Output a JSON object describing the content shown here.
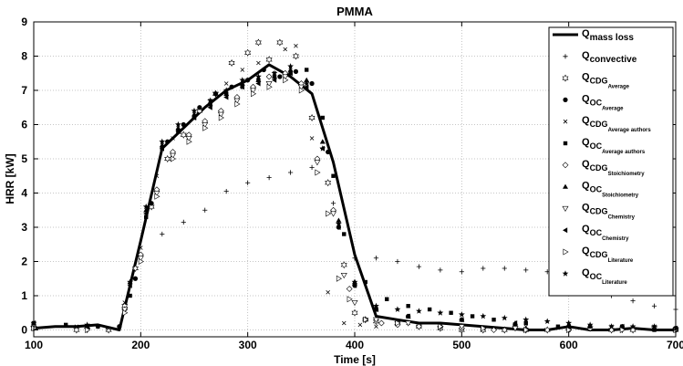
{
  "chart_data": {
    "type": "scatter",
    "title": "PMMA",
    "xlabel": "Time [s]",
    "ylabel": "HRR [kW]",
    "xlim": [
      100,
      700
    ],
    "ylim": [
      -0.2,
      9
    ],
    "xticks": [
      100,
      200,
      300,
      400,
      500,
      600,
      700
    ],
    "yticks": [
      0,
      1,
      2,
      3,
      4,
      5,
      6,
      7,
      8,
      9
    ],
    "x_tick_labels": [
      "100",
      "200",
      "300",
      "400",
      "500",
      "600",
      "700"
    ],
    "y_tick_labels": [
      "0",
      "1",
      "2",
      "3",
      "4",
      "5",
      "6",
      "7",
      "8",
      "9"
    ],
    "grid": true,
    "legend_position": "top-right",
    "series": [
      {
        "name_main": "Q",
        "name_sub": "mass loss",
        "marker": "line",
        "x": [
          100,
          120,
          140,
          160,
          180,
          200,
          220,
          240,
          260,
          280,
          300,
          320,
          340,
          360,
          380,
          400,
          420,
          440,
          460,
          480,
          500,
          520,
          540,
          560,
          580,
          600,
          620,
          640,
          660,
          680,
          700
        ],
        "y": [
          0.05,
          0.1,
          0.1,
          0.15,
          0.0,
          2.6,
          5.3,
          5.9,
          6.5,
          7.0,
          7.3,
          7.75,
          7.4,
          6.9,
          4.9,
          2.2,
          0.4,
          0.3,
          0.2,
          0.2,
          0.15,
          0.1,
          0.05,
          0.0,
          0.0,
          0.1,
          0.0,
          0.0,
          0.05,
          0.0,
          0.0
        ]
      },
      {
        "name_main": "Q",
        "name_sub": "convective",
        "marker": "plus",
        "x": [
          100,
          160,
          220,
          240,
          260,
          280,
          300,
          320,
          340,
          360,
          380,
          400,
          420,
          440,
          460,
          480,
          500,
          520,
          540,
          560,
          580,
          600,
          620,
          640,
          660,
          680,
          700
        ],
        "y": [
          0.05,
          0.1,
          2.8,
          3.15,
          3.5,
          4.05,
          4.3,
          4.45,
          4.6,
          4.75,
          3.7,
          2.1,
          2.1,
          2.0,
          1.85,
          1.75,
          1.7,
          1.8,
          1.8,
          1.75,
          1.7,
          1.5,
          1.25,
          1.0,
          0.85,
          0.7,
          0.6
        ]
      },
      {
        "name_main": "Q",
        "name_sub": "CDG_Average",
        "marker": "hexagram",
        "x": [
          100,
          140,
          170,
          185,
          195,
          210,
          225,
          240,
          255,
          270,
          285,
          300,
          310,
          320,
          330,
          345,
          360,
          375,
          390,
          400,
          410,
          420,
          440,
          460,
          480,
          500,
          520,
          540,
          560,
          580,
          600,
          620,
          640,
          660,
          680,
          700
        ],
        "y": [
          0.05,
          0.0,
          0.0,
          0.7,
          1.8,
          3.6,
          5.0,
          5.7,
          6.4,
          6.9,
          7.8,
          8.1,
          8.4,
          7.9,
          8.4,
          8.0,
          6.2,
          4.3,
          1.9,
          0.5,
          0.3,
          0.25,
          0.2,
          0.1,
          0.05,
          0.0,
          0.0,
          0.0,
          0.0,
          0.0,
          0.05,
          0.05,
          0.0,
          0.0,
          0.05,
          0.0
        ]
      },
      {
        "name_main": "Q",
        "name_sub": "OC_Average",
        "marker": "circle",
        "x": [
          100,
          150,
          180,
          195,
          210,
          225,
          240,
          255,
          270,
          285,
          300,
          315,
          330,
          345,
          360,
          375,
          385,
          400,
          420,
          450,
          500,
          550,
          600,
          650,
          700
        ],
        "y": [
          0.1,
          0.05,
          0.1,
          1.5,
          3.7,
          5.5,
          6.0,
          6.5,
          6.9,
          7.1,
          7.3,
          7.6,
          7.4,
          7.55,
          7.2,
          5.2,
          3.0,
          1.3,
          0.6,
          0.4,
          0.3,
          0.15,
          0.1,
          0.1,
          0.05
        ]
      },
      {
        "name_main": "Q",
        "name_sub": "CDG_Average authors",
        "marker": "x",
        "x": [
          100,
          140,
          170,
          185,
          200,
          215,
          230,
          250,
          265,
          280,
          295,
          310,
          325,
          335,
          345,
          360,
          375,
          390,
          405,
          420,
          450,
          480,
          520,
          560,
          600,
          640,
          680,
          700
        ],
        "y": [
          0.15,
          0.1,
          0.05,
          0.8,
          2.4,
          4.5,
          5.6,
          6.2,
          6.7,
          7.2,
          7.6,
          7.8,
          7.5,
          8.2,
          8.3,
          5.6,
          1.1,
          0.2,
          0.15,
          0.1,
          0.2,
          0.1,
          0.05,
          0.1,
          0.0,
          0.1,
          0.1,
          0.05
        ]
      },
      {
        "name_main": "Q",
        "name_sub": "OC_Average authors",
        "marker": "square",
        "x": [
          100,
          130,
          160,
          190,
          205,
          220,
          235,
          250,
          265,
          280,
          295,
          310,
          325,
          340,
          355,
          370,
          380,
          390,
          410,
          430,
          450,
          470,
          490,
          510,
          530,
          560,
          590,
          620,
          650,
          680,
          700
        ],
        "y": [
          0.2,
          0.15,
          0.1,
          1.0,
          3.3,
          5.3,
          5.8,
          6.2,
          6.6,
          6.9,
          7.1,
          7.3,
          7.4,
          7.5,
          7.6,
          6.2,
          4.5,
          2.8,
          1.4,
          0.9,
          0.7,
          0.6,
          0.5,
          0.4,
          0.3,
          0.2,
          0.1,
          0.1,
          0.1,
          0.0,
          0.0
        ]
      },
      {
        "name_main": "Q",
        "name_sub": "CDG_Stoichiometry",
        "marker": "diamond",
        "x": [
          100,
          150,
          185,
          200,
          215,
          230,
          245,
          260,
          275,
          290,
          305,
          320,
          335,
          350,
          365,
          380,
          395,
          410,
          425,
          440,
          460,
          480,
          500,
          530,
          560,
          600,
          650,
          700
        ],
        "y": [
          0.1,
          0.05,
          0.6,
          2.2,
          4.1,
          5.2,
          5.7,
          6.1,
          6.4,
          6.8,
          7.1,
          7.4,
          7.5,
          7.2,
          5.0,
          3.5,
          1.2,
          0.3,
          0.2,
          0.15,
          0.1,
          0.1,
          0.05,
          0.0,
          0.0,
          0.0,
          0.05,
          0.0
        ]
      },
      {
        "name_main": "Q",
        "name_sub": "OC_Stoichiometry",
        "marker": "triangle-up",
        "x": [
          100,
          150,
          190,
          205,
          220,
          235,
          250,
          265,
          280,
          295,
          310,
          325,
          340,
          355,
          370,
          385,
          400,
          420,
          450,
          500,
          550,
          600,
          650,
          700
        ],
        "y": [
          0.2,
          0.1,
          1.4,
          3.5,
          5.4,
          5.9,
          6.3,
          6.6,
          6.9,
          7.2,
          7.3,
          7.4,
          7.6,
          7.3,
          5.5,
          3.2,
          1.4,
          0.6,
          0.4,
          0.3,
          0.2,
          0.1,
          0.1,
          0.05
        ]
      },
      {
        "name_main": "Q",
        "name_sub": "CDG_Chemistry",
        "marker": "triangle-down",
        "x": [
          100,
          150,
          185,
          200,
          215,
          230,
          245,
          260,
          275,
          290,
          305,
          320,
          335,
          350,
          365,
          380,
          390,
          400,
          420,
          450,
          500,
          550,
          600,
          650,
          700
        ],
        "y": [
          0.05,
          0.0,
          0.6,
          2.1,
          4.0,
          5.1,
          5.6,
          6.0,
          6.3,
          6.7,
          7.0,
          7.2,
          7.4,
          7.1,
          4.9,
          3.4,
          1.6,
          0.8,
          0.3,
          0.2,
          0.1,
          0.05,
          0.0,
          0.0,
          0.0
        ]
      },
      {
        "name_main": "Q",
        "name_sub": "OC_Chemistry",
        "marker": "triangle-left",
        "x": [
          100,
          150,
          190,
          205,
          220,
          235,
          250,
          265,
          280,
          295,
          310,
          325,
          340,
          355,
          370,
          385,
          400,
          420,
          450,
          500,
          550,
          600,
          650,
          700
        ],
        "y": [
          0.2,
          0.1,
          1.3,
          3.4,
          5.3,
          5.8,
          6.2,
          6.5,
          6.8,
          7.1,
          7.2,
          7.3,
          7.5,
          7.1,
          5.3,
          3.0,
          1.3,
          0.6,
          0.4,
          0.3,
          0.2,
          0.1,
          0.1,
          0.05
        ]
      },
      {
        "name_main": "Q",
        "name_sub": "CDG_Literature",
        "marker": "triangle-right",
        "x": [
          100,
          150,
          185,
          200,
          215,
          230,
          245,
          260,
          275,
          290,
          305,
          320,
          335,
          350,
          365,
          375,
          385,
          395,
          410,
          440,
          480,
          520,
          560,
          600,
          650,
          700
        ],
        "y": [
          0.05,
          0.0,
          0.5,
          2.0,
          3.9,
          5.0,
          5.5,
          5.9,
          6.2,
          6.6,
          6.9,
          7.1,
          7.3,
          7.0,
          4.6,
          3.4,
          1.5,
          0.9,
          0.3,
          0.2,
          0.1,
          0.05,
          0.0,
          0.0,
          0.0,
          0.0
        ]
      },
      {
        "name_main": "Q",
        "name_sub": "OC_Literature",
        "marker": "pentagram",
        "x": [
          100,
          150,
          190,
          205,
          220,
          235,
          250,
          265,
          280,
          295,
          310,
          325,
          340,
          355,
          370,
          385,
          400,
          420,
          440,
          460,
          480,
          500,
          520,
          540,
          560,
          580,
          600,
          620,
          640,
          660,
          680,
          700
        ],
        "y": [
          0.2,
          0.15,
          1.4,
          3.6,
          5.5,
          6.0,
          6.4,
          6.7,
          7.0,
          7.3,
          7.4,
          7.5,
          7.7,
          7.2,
          5.3,
          3.1,
          1.4,
          0.7,
          0.6,
          0.55,
          0.5,
          0.45,
          0.4,
          0.35,
          0.3,
          0.25,
          0.2,
          0.15,
          0.1,
          0.1,
          0.1,
          0.05
        ]
      }
    ]
  }
}
